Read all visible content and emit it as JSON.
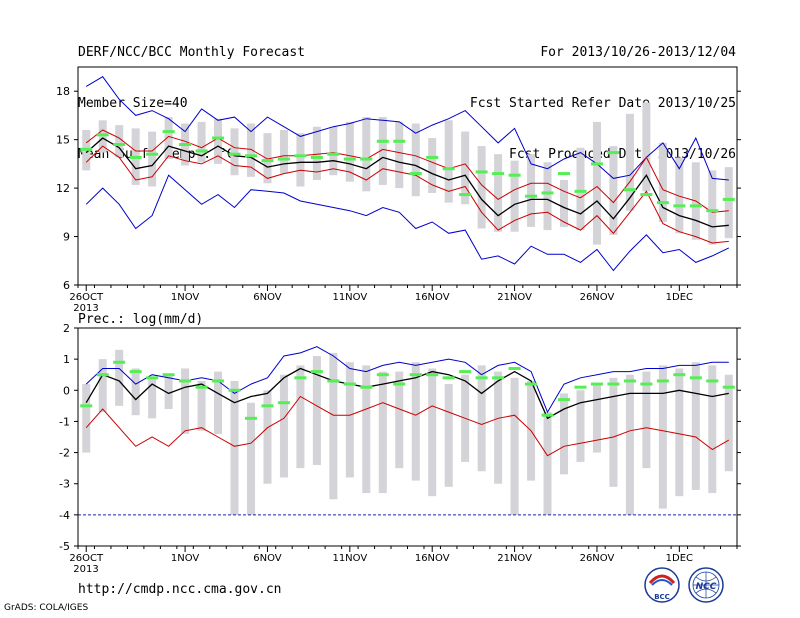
{
  "header": {
    "title": "DERF/NCC/BCC Monthly Forecast",
    "member_size": "Member Size=40",
    "panel1_label": "Mean Surf. Temp.: °C",
    "period": "For 2013/10/26-2013/12/04",
    "start_date": "Fcst Started Refer Date 2013/10/25",
    "produced_date": "Fcst Produced Date 2013/10/26"
  },
  "panel2_label": "Prec.: log(mm/d)",
  "footer": {
    "url": "http://cmdp.ncc.cma.gov.cn",
    "credit": "GrADS: COLA/IGES",
    "logo_left": "BCC",
    "logo_right": "NCC"
  },
  "x_ticks": [
    "26OCT",
    "1NOV",
    "6NOV",
    "11NOV",
    "16NOV",
    "21NOV",
    "26NOV",
    "1DEC"
  ],
  "x_year": "2013",
  "colors": {
    "bar": "#d3d3d8",
    "mean": "#000000",
    "upper": "#0000cc",
    "lower": "#cc0000",
    "marker": "#55ee55",
    "dashed": "#2222aa"
  },
  "chart_data": [
    {
      "type": "line",
      "title": "Mean Surf. Temp.: °C",
      "ylim": [
        6,
        19.5
      ],
      "yticks": [
        6,
        9,
        12,
        15,
        18
      ],
      "days": 40,
      "series": [
        {
          "name": "",
          "role": "max",
          "values": [
            18.3,
            18.9,
            17.5,
            16.5,
            16.8,
            16.3,
            15.5,
            16.9,
            16.2,
            16.4,
            15.5,
            16.4,
            15.8,
            15.2,
            15.5,
            15.8,
            16.0,
            16.3,
            16.2,
            16.1,
            15.4,
            15.9,
            16.3,
            16.8,
            15.8,
            14.8,
            15.7,
            13.5,
            13.2,
            13.8,
            14.2,
            13.5,
            12.6,
            12.8,
            13.9,
            14.8,
            13.2,
            15.1,
            12.6,
            12.5
          ]
        },
        {
          "name": "",
          "role": "upper",
          "values": [
            14.8,
            15.6,
            15.1,
            14.3,
            14.3,
            15.2,
            14.9,
            14.5,
            15.1,
            14.5,
            14.4,
            13.8,
            14.0,
            14.0,
            14.1,
            14.2,
            14.0,
            13.8,
            14.4,
            14.2,
            14.0,
            13.6,
            13.2,
            13.5,
            12.2,
            11.3,
            11.9,
            12.3,
            12.3,
            11.8,
            11.4,
            12.1,
            11.1,
            12.4,
            13.9,
            11.9,
            11.5,
            11.2,
            10.5,
            10.6
          ]
        },
        {
          "name": "",
          "role": "mean",
          "values": [
            14.2,
            15.1,
            14.5,
            13.2,
            13.4,
            14.6,
            14.3,
            14.0,
            14.6,
            14.0,
            13.9,
            13.3,
            13.5,
            13.6,
            13.6,
            13.7,
            13.5,
            13.2,
            13.9,
            13.6,
            13.4,
            12.9,
            12.5,
            12.8,
            11.3,
            10.3,
            11.0,
            11.3,
            11.3,
            10.8,
            10.4,
            11.2,
            10.1,
            11.4,
            12.8,
            10.8,
            10.3,
            10.0,
            9.6,
            9.7
          ]
        },
        {
          "name": "",
          "role": "lower",
          "values": [
            13.6,
            14.6,
            13.9,
            12.5,
            12.7,
            14.0,
            13.7,
            13.5,
            14.0,
            13.4,
            13.3,
            12.6,
            12.9,
            13.1,
            13.0,
            13.2,
            13.0,
            12.5,
            13.2,
            13.0,
            12.8,
            12.2,
            11.8,
            12.1,
            10.5,
            9.4,
            10.0,
            10.4,
            10.5,
            9.9,
            9.4,
            10.3,
            9.2,
            10.5,
            11.8,
            9.8,
            9.3,
            9.0,
            8.6,
            8.7
          ]
        },
        {
          "name": "",
          "role": "min",
          "values": [
            11.0,
            12.0,
            11.0,
            9.5,
            10.3,
            12.8,
            11.9,
            11.0,
            11.6,
            10.8,
            11.9,
            11.8,
            11.7,
            11.2,
            11.0,
            10.8,
            10.6,
            10.3,
            10.8,
            10.5,
            9.5,
            9.9,
            9.2,
            9.4,
            7.6,
            7.8,
            7.3,
            8.4,
            7.9,
            7.9,
            7.4,
            8.2,
            6.9,
            8.1,
            9.1,
            8.0,
            8.2,
            7.4,
            7.8,
            8.3
          ]
        }
      ],
      "markers": [
        14.4,
        15.3,
        14.7,
        13.9,
        14.1,
        15.5,
        14.7,
        14.3,
        15.1,
        14.1,
        14.0,
        13.7,
        13.8,
        14.0,
        13.9,
        14.1,
        13.8,
        13.8,
        14.9,
        14.9,
        12.9,
        13.9,
        13.2,
        11.6,
        13.0,
        12.9,
        12.8,
        11.5,
        11.7,
        12.9,
        11.8,
        13.5,
        14.2,
        11.9,
        11.6,
        11.1,
        10.9,
        10.9,
        10.6,
        11.3
      ],
      "bars": [
        [
          13.1,
          15.6
        ],
        [
          14.2,
          16.2
        ],
        [
          13.9,
          15.9
        ],
        [
          12.2,
          15.7
        ],
        [
          12.1,
          15.5
        ],
        [
          13.8,
          16.4
        ],
        [
          13.4,
          16.0
        ],
        [
          13.6,
          16.1
        ],
        [
          13.5,
          16.3
        ],
        [
          12.8,
          15.7
        ],
        [
          12.7,
          16.0
        ],
        [
          12.3,
          15.4
        ],
        [
          12.9,
          15.6
        ],
        [
          12.1,
          15.4
        ],
        [
          12.5,
          15.8
        ],
        [
          12.8,
          15.8
        ],
        [
          12.4,
          16.1
        ],
        [
          11.8,
          16.4
        ],
        [
          12.2,
          16.4
        ],
        [
          12.0,
          16.1
        ],
        [
          11.5,
          16.0
        ],
        [
          11.7,
          15.1
        ],
        [
          11.1,
          16.2
        ],
        [
          11.0,
          15.5
        ],
        [
          9.5,
          14.6
        ],
        [
          9.3,
          14.1
        ],
        [
          9.3,
          13.7
        ],
        [
          9.6,
          14.1
        ],
        [
          9.4,
          13.6
        ],
        [
          9.6,
          12.5
        ],
        [
          9.4,
          14.5
        ],
        [
          8.5,
          16.1
        ],
        [
          9.1,
          14.6
        ],
        [
          10.6,
          16.6
        ],
        [
          11.8,
          17.3
        ],
        [
          9.9,
          14.8
        ],
        [
          9.2,
          13.9
        ],
        [
          8.8,
          13.6
        ],
        [
          8.5,
          13.1
        ],
        [
          8.9,
          13.3
        ]
      ]
    },
    {
      "type": "line",
      "title": "Prec.: log(mm/d)",
      "ylim": [
        -5,
        2
      ],
      "yticks": [
        -5,
        -4,
        -3,
        -2,
        -1,
        0,
        1,
        2
      ],
      "days": 40,
      "series": [
        {
          "name": "",
          "role": "upper",
          "values": [
            0.2,
            0.7,
            0.7,
            0.2,
            0.5,
            0.4,
            0.3,
            0.4,
            0.3,
            -0.1,
            0.2,
            0.4,
            1.1,
            1.2,
            1.4,
            1.1,
            0.7,
            0.6,
            0.8,
            0.9,
            0.8,
            0.9,
            1.0,
            0.9,
            0.5,
            0.8,
            0.9,
            0.6,
            -0.7,
            0.2,
            0.4,
            0.5,
            0.6,
            0.6,
            0.7,
            0.7,
            0.8,
            0.8,
            0.9,
            0.9
          ]
        },
        {
          "name": "",
          "role": "mean",
          "values": [
            -0.4,
            0.5,
            0.3,
            -0.3,
            0.2,
            -0.1,
            0.1,
            0.2,
            -0.1,
            -0.4,
            -0.2,
            -0.1,
            0.4,
            0.7,
            0.5,
            0.3,
            0.2,
            0.1,
            0.2,
            0.3,
            0.4,
            0.6,
            0.5,
            0.3,
            -0.1,
            0.3,
            0.6,
            0.3,
            -0.9,
            -0.6,
            -0.4,
            -0.3,
            -0.2,
            -0.1,
            -0.1,
            -0.1,
            0.0,
            -0.1,
            -0.2,
            -0.1
          ]
        },
        {
          "name": "",
          "role": "lower",
          "values": [
            -1.2,
            -0.6,
            -1.2,
            -1.8,
            -1.5,
            -1.8,
            -1.3,
            -1.2,
            -1.5,
            -1.8,
            -1.7,
            -1.2,
            -0.9,
            -0.2,
            -0.5,
            -0.8,
            -0.8,
            -0.6,
            -0.4,
            -0.6,
            -0.8,
            -0.5,
            -0.7,
            -0.9,
            -1.1,
            -0.9,
            -0.8,
            -1.3,
            -2.1,
            -1.8,
            -1.7,
            -1.6,
            -1.5,
            -1.3,
            -1.2,
            -1.3,
            -1.4,
            -1.5,
            -1.9,
            -1.6
          ]
        }
      ],
      "markers": [
        -0.5,
        0.5,
        0.9,
        0.6,
        0.4,
        0.5,
        0.3,
        0.1,
        0.3,
        0.0,
        -0.9,
        -0.5,
        -0.4,
        0.4,
        0.6,
        0.3,
        0.2,
        0.1,
        0.5,
        0.2,
        0.5,
        0.5,
        0.4,
        0.6,
        0.4,
        0.4,
        0.7,
        0.2,
        -0.8,
        -0.3,
        0.1,
        0.2,
        0.2,
        0.3,
        0.2,
        0.3,
        0.5,
        0.4,
        0.3,
        0.1
      ],
      "bars": [
        [
          -2.0,
          0.2
        ],
        [
          -0.7,
          1.0
        ],
        [
          -0.5,
          1.3
        ],
        [
          -0.8,
          0.7
        ],
        [
          -0.9,
          0.4
        ],
        [
          -0.6,
          0.5
        ],
        [
          -1.4,
          0.7
        ],
        [
          -1.3,
          0.3
        ],
        [
          -1.4,
          0.6
        ],
        [
          -4.0,
          0.3
        ],
        [
          -4.0,
          -0.4
        ],
        [
          -3.0,
          0.0
        ],
        [
          -2.8,
          0.5
        ],
        [
          -2.5,
          0.8
        ],
        [
          -2.4,
          1.1
        ],
        [
          -3.5,
          1.2
        ],
        [
          -2.8,
          0.9
        ],
        [
          -3.3,
          0.8
        ],
        [
          -3.3,
          0.6
        ],
        [
          -2.5,
          0.6
        ],
        [
          -2.9,
          0.9
        ],
        [
          -3.4,
          0.7
        ],
        [
          -3.1,
          0.2
        ],
        [
          -2.3,
          0.5
        ],
        [
          -2.6,
          0.8
        ],
        [
          -3.0,
          0.6
        ],
        [
          -4.0,
          0.4
        ],
        [
          -2.9,
          0.3
        ],
        [
          -4.0,
          -0.7
        ],
        [
          -2.7,
          -0.1
        ],
        [
          -2.3,
          0.0
        ],
        [
          -2.0,
          0.2
        ],
        [
          -3.1,
          0.4
        ],
        [
          -4.0,
          0.5
        ],
        [
          -2.5,
          0.6
        ],
        [
          -3.8,
          0.8
        ],
        [
          -3.4,
          0.7
        ],
        [
          -3.2,
          0.9
        ],
        [
          -3.3,
          0.8
        ],
        [
          -2.6,
          0.5
        ]
      ],
      "reference_line": -4
    }
  ]
}
